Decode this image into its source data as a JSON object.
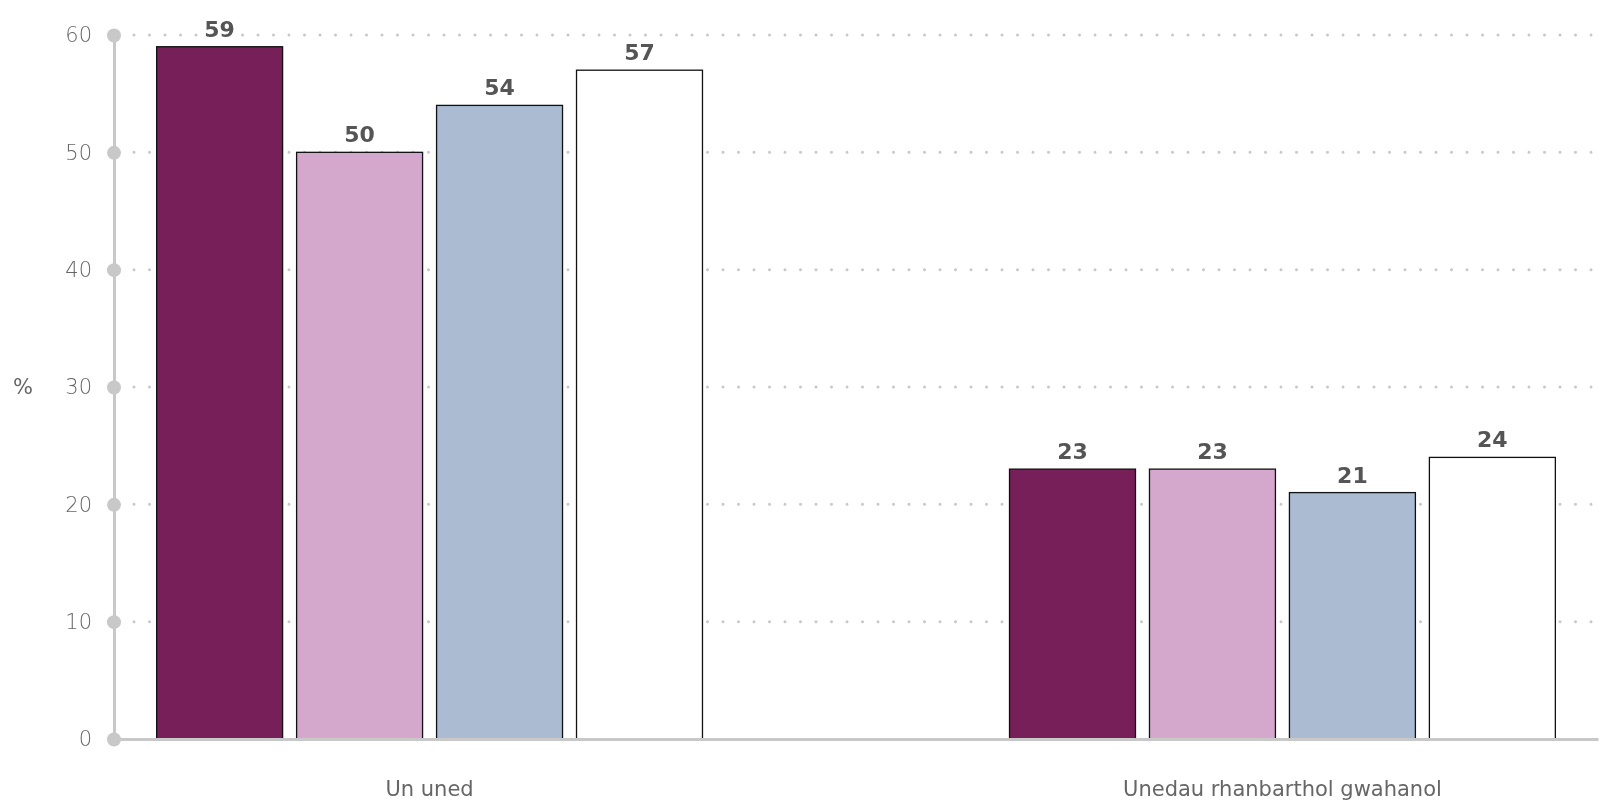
{
  "chart_data": {
    "type": "bar",
    "ylabel": "%",
    "categories": [
      "Un uned",
      "Unedau rhanbarthol gwahanol"
    ],
    "series": [
      {
        "color": "#761f59",
        "values": [
          59,
          23
        ]
      },
      {
        "color": "#d4a7cd",
        "values": [
          50,
          23
        ]
      },
      {
        "color": "#aabbd2",
        "values": [
          54,
          21
        ]
      },
      {
        "color": "#ffffff",
        "values": [
          57,
          24
        ]
      }
    ],
    "ylim": [
      0,
      60
    ],
    "yticks": [
      0,
      10,
      20,
      30,
      40,
      50,
      60
    ],
    "grid": "y",
    "data_labels": true
  }
}
